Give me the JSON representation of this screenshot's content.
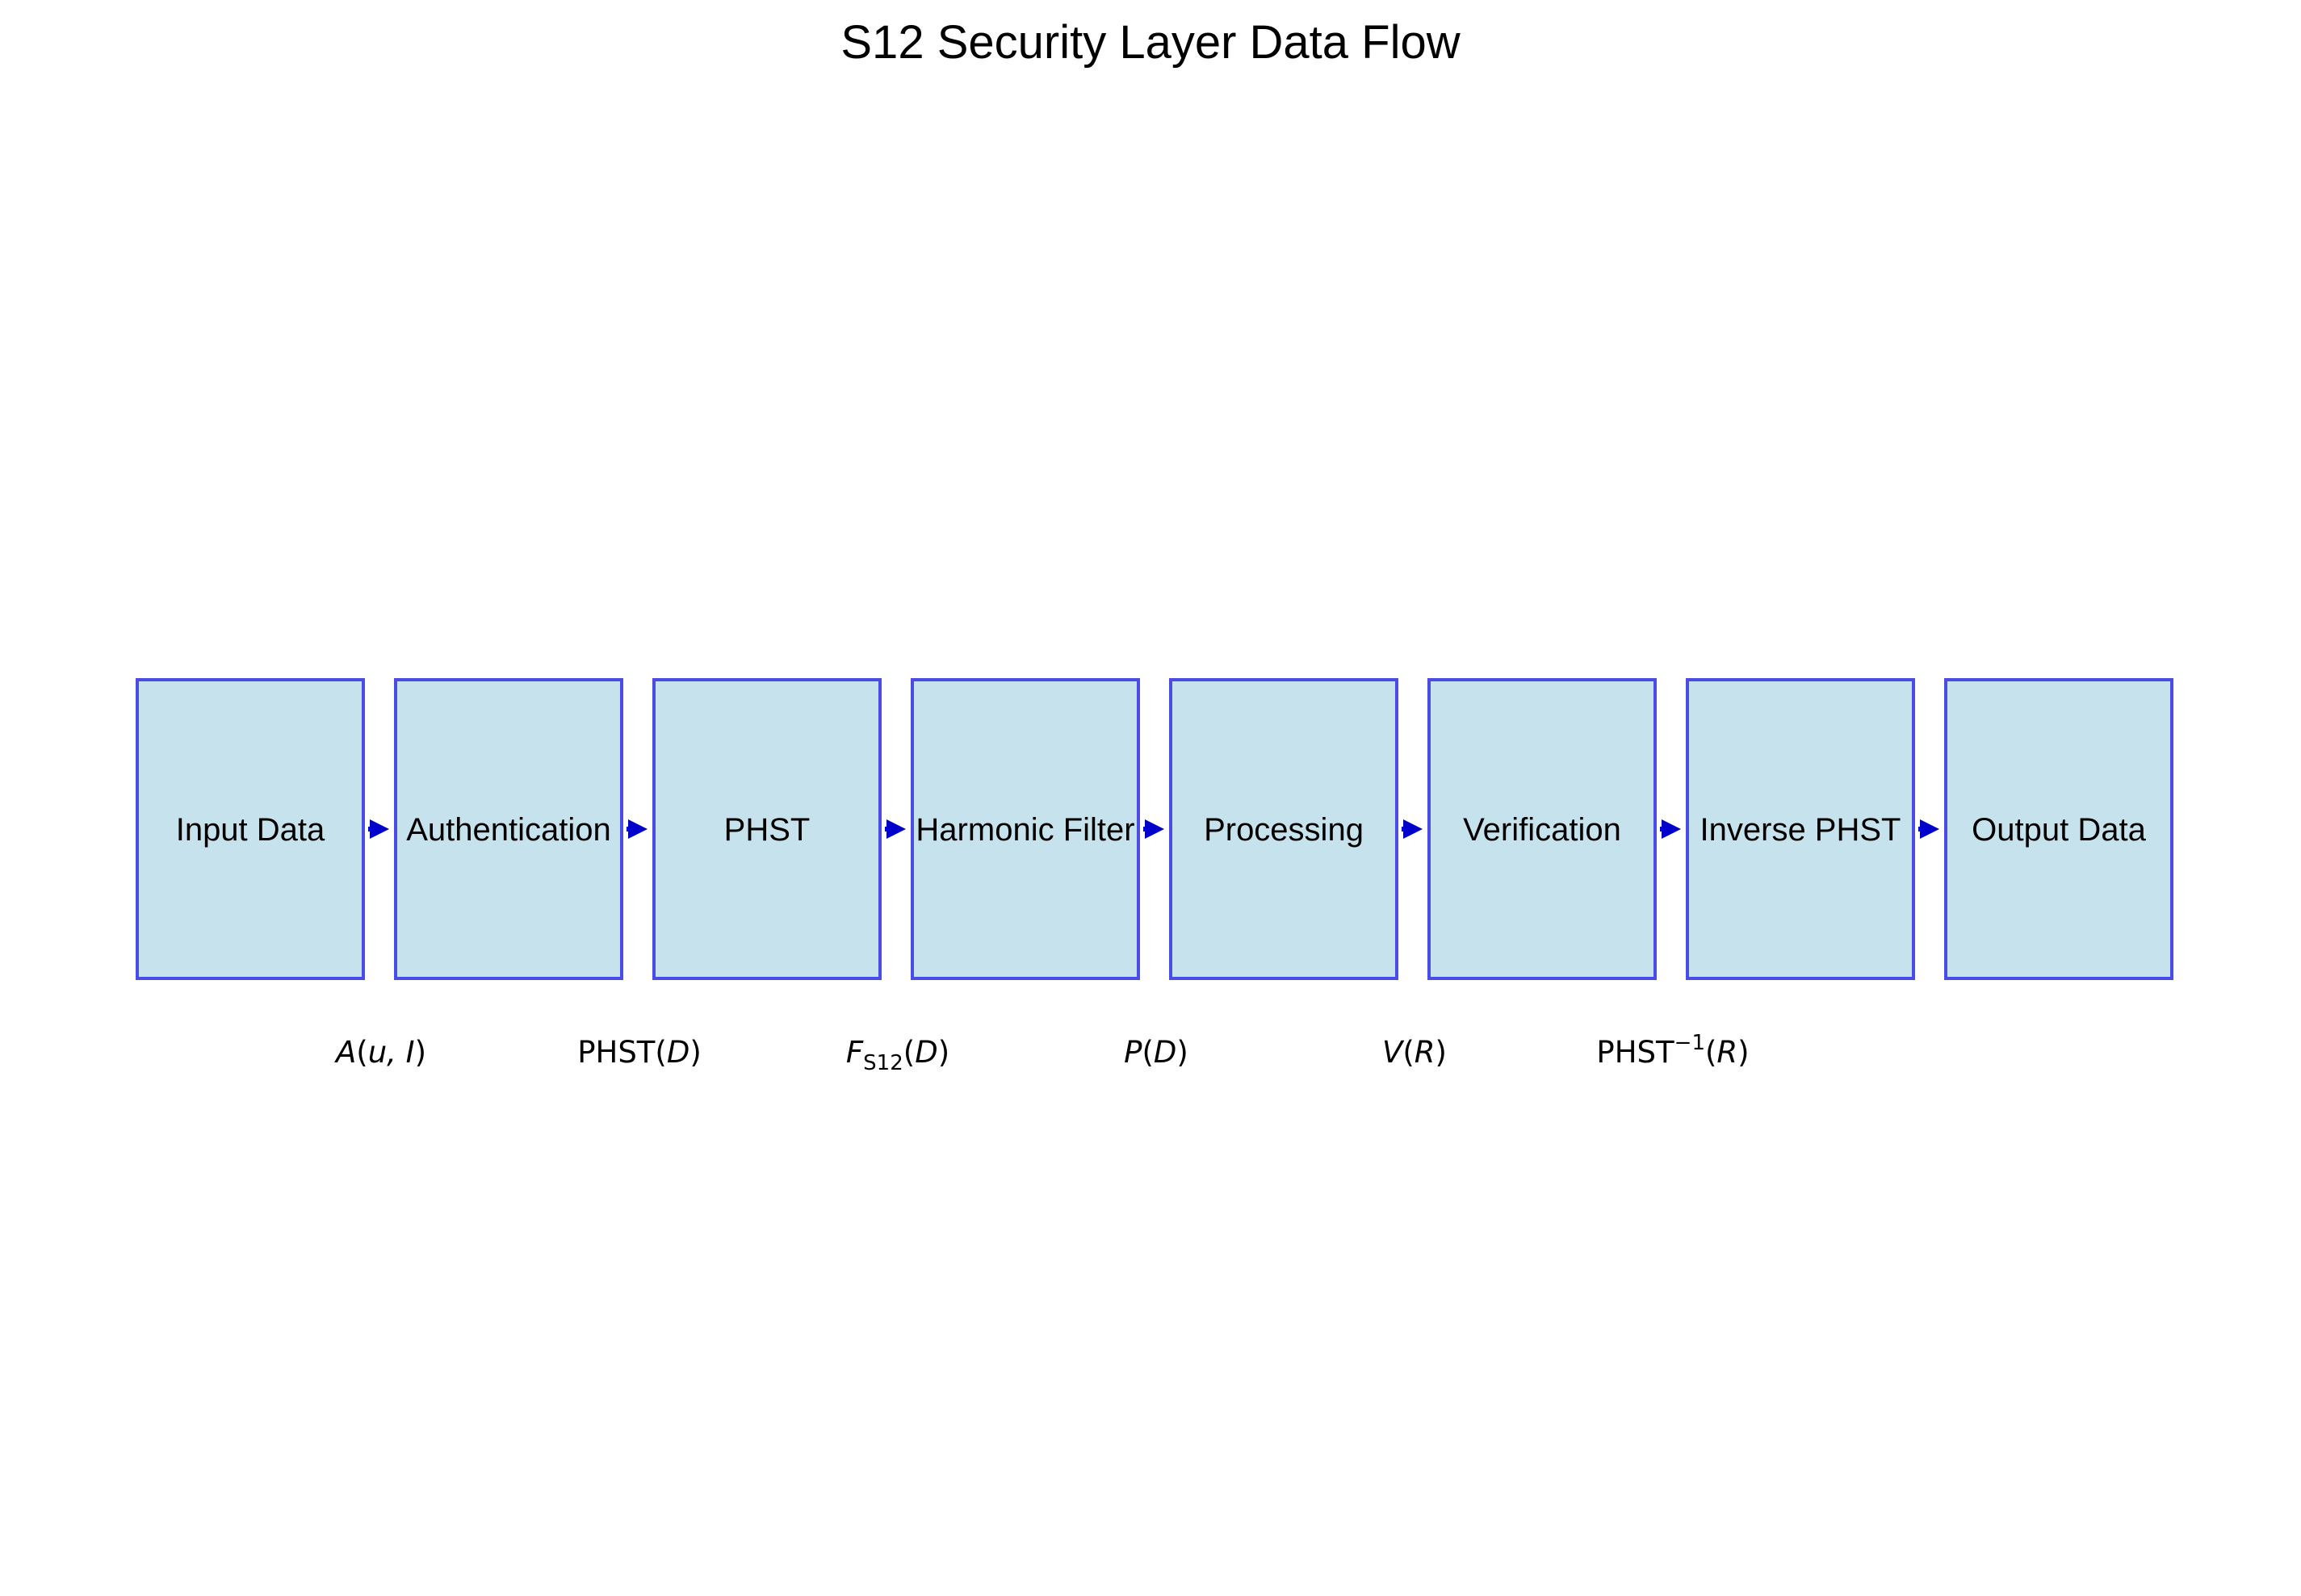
{
  "title": "S12 Security Layer Data Flow",
  "stages": [
    {
      "id": "input",
      "label": "Input Data"
    },
    {
      "id": "auth",
      "label": "Authentication"
    },
    {
      "id": "phst",
      "label": "PHST"
    },
    {
      "id": "filter",
      "label": "Harmonic Filter"
    },
    {
      "id": "processing",
      "label": "Processing"
    },
    {
      "id": "verification",
      "label": "Verification"
    },
    {
      "id": "inverse-phst",
      "label": "Inverse PHST"
    },
    {
      "id": "output",
      "label": "Output Data"
    }
  ],
  "formulas": [
    {
      "name": "A",
      "sub": "",
      "sup": "",
      "args": "u, I",
      "name_italic": true
    },
    {
      "name": "PHST",
      "sub": "",
      "sup": "",
      "args": "D",
      "name_italic": false
    },
    {
      "name": "F",
      "sub": "S12",
      "sup": "",
      "args": "D",
      "name_italic": true
    },
    {
      "name": "P",
      "sub": "",
      "sup": "",
      "args": "D",
      "name_italic": true
    },
    {
      "name": "V",
      "sub": "",
      "sup": "",
      "args": "R",
      "name_italic": true
    },
    {
      "name": "PHST",
      "sub": "",
      "sup": "−1",
      "args": "R",
      "name_italic": false
    }
  ],
  "colors": {
    "box_fill": "#c6e3ed",
    "box_stroke": "#4b4be6",
    "arrow": "#0000cc"
  }
}
